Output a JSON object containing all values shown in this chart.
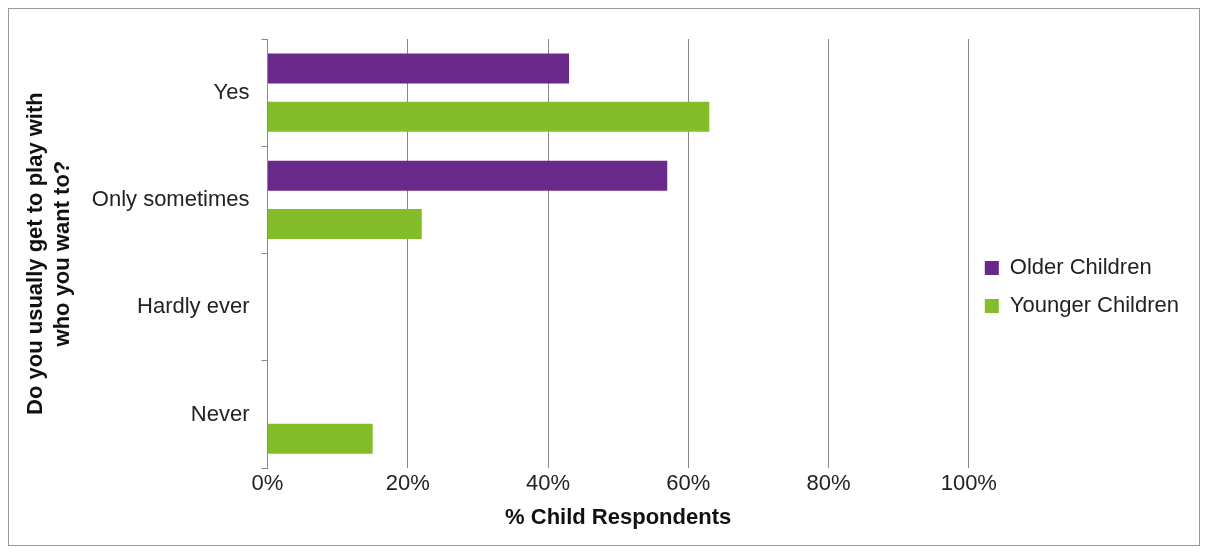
{
  "chart_data": {
    "type": "bar",
    "orientation": "horizontal",
    "categories": [
      "Yes",
      "Only sometimes",
      "Hardly ever",
      "Never"
    ],
    "series": [
      {
        "name": "Older Children",
        "color": "#68298a",
        "values": [
          43,
          57,
          0,
          0
        ]
      },
      {
        "name": "Younger Children",
        "color": "#84bd2a",
        "values": [
          63,
          22,
          0,
          15
        ]
      }
    ],
    "xlim": [
      0,
      100
    ],
    "xticks": [
      {
        "value": 0,
        "label": "0%"
      },
      {
        "value": 20,
        "label": "20%"
      },
      {
        "value": 40,
        "label": "40%"
      },
      {
        "value": 60,
        "label": "60%"
      },
      {
        "value": 80,
        "label": "80%"
      },
      {
        "value": 100,
        "label": "100%"
      }
    ],
    "xlabel": "% Child Respondents",
    "ylabel": "Do you usually get to play with who you want to?",
    "grid": "x",
    "legend": "right"
  }
}
